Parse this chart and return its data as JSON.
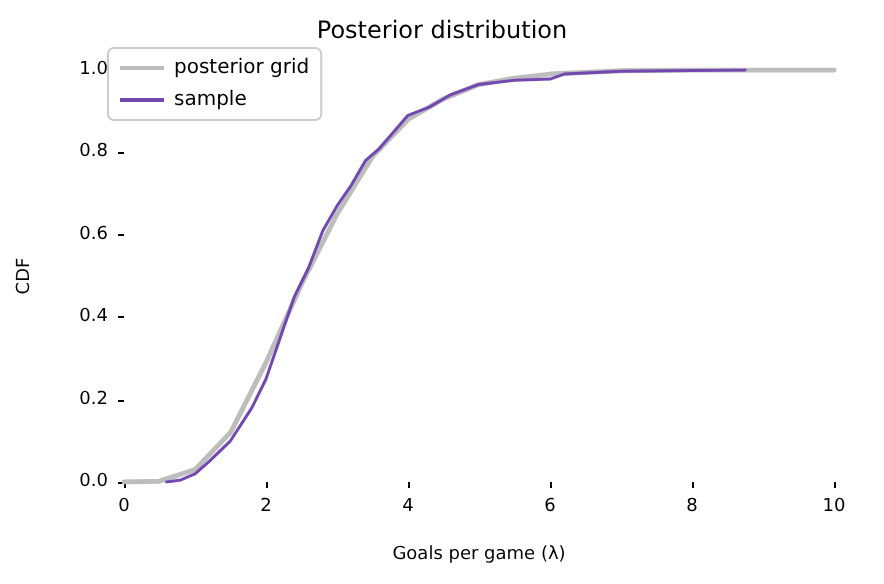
{
  "chart_data": {
    "type": "line",
    "title": "Posterior distribution",
    "xlabel": "Goals per game (λ)",
    "ylabel": "CDF",
    "series": [
      {
        "name": "posterior grid",
        "color": "#bdbdbd",
        "x": [
          0,
          0.5,
          1,
          1.5,
          2,
          2.5,
          3,
          3.5,
          4,
          4.5,
          5,
          5.5,
          6,
          7,
          8,
          10
        ],
        "values": [
          0,
          0.002,
          0.03,
          0.12,
          0.29,
          0.48,
          0.65,
          0.79,
          0.88,
          0.93,
          0.965,
          0.98,
          0.99,
          0.998,
          1,
          1
        ]
      },
      {
        "name": "sample",
        "color": "#7248b0",
        "x": [
          0.6,
          0.8,
          1,
          1.2,
          1.5,
          1.8,
          2,
          2.2,
          2.4,
          2.6,
          2.8,
          3,
          3.2,
          3.4,
          3.6,
          3.8,
          4,
          4.3,
          4.6,
          5,
          5.5,
          6,
          6.2,
          7,
          8,
          8.75
        ],
        "values": [
          0,
          0.005,
          0.02,
          0.05,
          0.1,
          0.18,
          0.25,
          0.35,
          0.45,
          0.52,
          0.61,
          0.67,
          0.72,
          0.78,
          0.81,
          0.85,
          0.89,
          0.91,
          0.94,
          0.965,
          0.975,
          0.978,
          0.99,
          0.997,
          0.999,
          1
        ]
      }
    ],
    "xlim": [
      0,
      10
    ],
    "ylim": [
      0,
      1
    ],
    "xticks": [
      0,
      2,
      4,
      6,
      8,
      10
    ],
    "yticks": [
      {
        "value": 0,
        "label": "0.0"
      },
      {
        "value": 0.2,
        "label": "0.2"
      },
      {
        "value": 0.4,
        "label": "0.4"
      },
      {
        "value": 0.6,
        "label": "0.6"
      },
      {
        "value": 0.8,
        "label": "0.8"
      },
      {
        "value": 1,
        "label": "1.0"
      }
    ],
    "legend": "top left",
    "grid": false,
    "marker": "none",
    "line_style": "solid"
  }
}
